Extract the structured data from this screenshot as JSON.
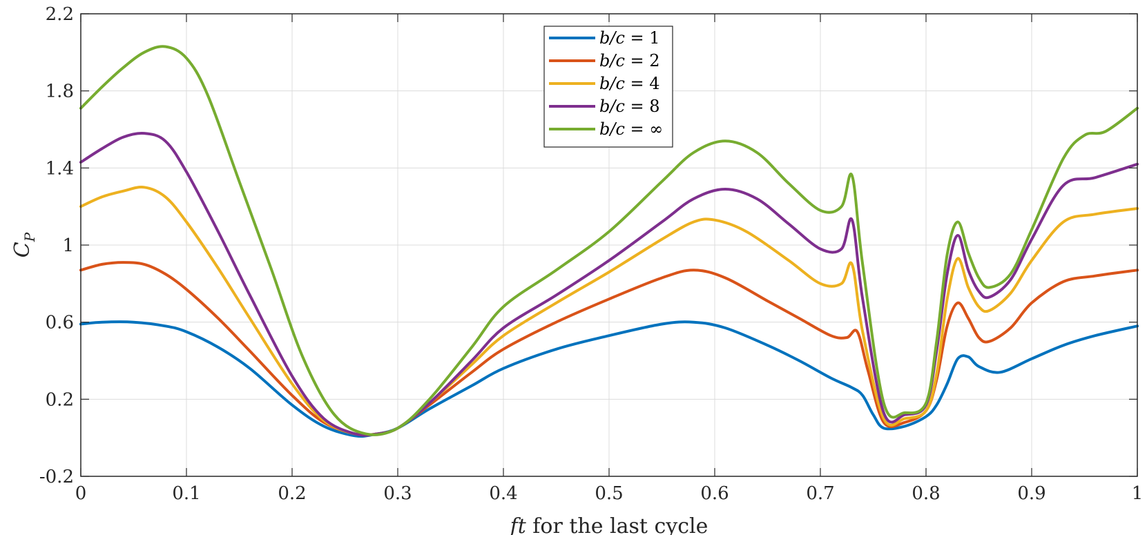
{
  "chart_data": {
    "type": "line",
    "title": "",
    "xlabel": "ft for the last cycle",
    "xlabel_math": "ft",
    "xlabel_text": " for the last cycle",
    "ylabel": "C_P",
    "ylabel_main": "C",
    "ylabel_sub": "P",
    "xlim": [
      0,
      1
    ],
    "ylim": [
      -0.2,
      2.2
    ],
    "xticks": [
      0,
      0.1,
      0.2,
      0.3,
      0.4,
      0.5,
      0.6,
      0.7,
      0.8,
      0.9,
      1
    ],
    "xtick_labels": [
      "0",
      "0.1",
      "0.2",
      "0.3",
      "0.4",
      "0.5",
      "0.6",
      "0.7",
      "0.8",
      "0.9",
      "1"
    ],
    "yticks": [
      -0.2,
      0.2,
      0.6,
      1,
      1.4,
      1.8,
      2.2
    ],
    "ytick_labels": [
      "-0.2",
      "0.2",
      "0.6",
      "1",
      "1.4",
      "1.8",
      "2.2"
    ],
    "grid": true,
    "legend_position": "top-center",
    "series": [
      {
        "name": "b/c = 1",
        "label_math": "b/c",
        "label_rhs": "1",
        "color": "#0072BD",
        "x": [
          0,
          0.02,
          0.05,
          0.08,
          0.1,
          0.13,
          0.16,
          0.2,
          0.23,
          0.26,
          0.28,
          0.3,
          0.33,
          0.37,
          0.4,
          0.45,
          0.5,
          0.55,
          0.58,
          0.61,
          0.65,
          0.68,
          0.71,
          0.73,
          0.74,
          0.75,
          0.76,
          0.78,
          0.8,
          0.81,
          0.82,
          0.83,
          0.84,
          0.85,
          0.87,
          0.9,
          0.93,
          0.96,
          1
        ],
        "y": [
          0.59,
          0.6,
          0.6,
          0.58,
          0.55,
          0.47,
          0.36,
          0.17,
          0.06,
          0.01,
          0.02,
          0.05,
          0.15,
          0.27,
          0.36,
          0.46,
          0.53,
          0.59,
          0.6,
          0.57,
          0.48,
          0.4,
          0.31,
          0.26,
          0.22,
          0.12,
          0.05,
          0.06,
          0.11,
          0.17,
          0.28,
          0.41,
          0.42,
          0.37,
          0.34,
          0.41,
          0.48,
          0.53,
          0.58
        ]
      },
      {
        "name": "b/c = 2",
        "label_math": "b/c",
        "label_rhs": "2",
        "color": "#D95319",
        "x": [
          0,
          0.02,
          0.04,
          0.06,
          0.08,
          0.1,
          0.13,
          0.16,
          0.2,
          0.23,
          0.26,
          0.28,
          0.3,
          0.33,
          0.37,
          0.4,
          0.45,
          0.5,
          0.55,
          0.58,
          0.61,
          0.65,
          0.68,
          0.71,
          0.725,
          0.735,
          0.745,
          0.76,
          0.78,
          0.8,
          0.81,
          0.82,
          0.83,
          0.84,
          0.85,
          0.86,
          0.88,
          0.9,
          0.93,
          0.96,
          1
        ],
        "y": [
          0.87,
          0.9,
          0.91,
          0.9,
          0.85,
          0.77,
          0.62,
          0.45,
          0.22,
          0.08,
          0.02,
          0.02,
          0.05,
          0.17,
          0.34,
          0.46,
          0.6,
          0.72,
          0.83,
          0.87,
          0.83,
          0.71,
          0.62,
          0.53,
          0.52,
          0.55,
          0.35,
          0.08,
          0.08,
          0.14,
          0.3,
          0.58,
          0.7,
          0.62,
          0.52,
          0.5,
          0.57,
          0.7,
          0.81,
          0.84,
          0.87
        ]
      },
      {
        "name": "b/c = 4",
        "label_math": "b/c",
        "label_rhs": "4",
        "color": "#EDB120",
        "x": [
          0,
          0.02,
          0.04,
          0.06,
          0.08,
          0.1,
          0.13,
          0.16,
          0.2,
          0.23,
          0.26,
          0.28,
          0.3,
          0.33,
          0.37,
          0.4,
          0.45,
          0.5,
          0.55,
          0.58,
          0.6,
          0.63,
          0.67,
          0.7,
          0.72,
          0.73,
          0.74,
          0.76,
          0.78,
          0.8,
          0.81,
          0.82,
          0.83,
          0.84,
          0.85,
          0.86,
          0.88,
          0.9,
          0.93,
          0.96,
          1
        ],
        "y": [
          1.2,
          1.25,
          1.28,
          1.3,
          1.25,
          1.12,
          0.88,
          0.62,
          0.28,
          0.09,
          0.02,
          0.02,
          0.05,
          0.18,
          0.38,
          0.53,
          0.7,
          0.86,
          1.03,
          1.12,
          1.13,
          1.07,
          0.92,
          0.8,
          0.8,
          0.9,
          0.55,
          0.1,
          0.1,
          0.14,
          0.33,
          0.72,
          0.93,
          0.78,
          0.68,
          0.66,
          0.75,
          0.92,
          1.12,
          1.16,
          1.19
        ]
      },
      {
        "name": "b/c = 8",
        "label_math": "b/c",
        "label_rhs": "8",
        "color": "#7E2F8E",
        "x": [
          0,
          0.02,
          0.04,
          0.06,
          0.08,
          0.1,
          0.13,
          0.16,
          0.2,
          0.23,
          0.26,
          0.28,
          0.3,
          0.33,
          0.37,
          0.4,
          0.45,
          0.5,
          0.55,
          0.58,
          0.61,
          0.64,
          0.67,
          0.7,
          0.72,
          0.73,
          0.74,
          0.76,
          0.78,
          0.8,
          0.81,
          0.82,
          0.83,
          0.84,
          0.85,
          0.86,
          0.88,
          0.9,
          0.93,
          0.96,
          1
        ],
        "y": [
          1.43,
          1.5,
          1.56,
          1.58,
          1.54,
          1.38,
          1.07,
          0.74,
          0.32,
          0.1,
          0.02,
          0.02,
          0.05,
          0.18,
          0.4,
          0.57,
          0.74,
          0.92,
          1.12,
          1.24,
          1.29,
          1.24,
          1.11,
          0.98,
          0.98,
          1.13,
          0.72,
          0.13,
          0.12,
          0.17,
          0.45,
          0.85,
          1.05,
          0.87,
          0.76,
          0.73,
          0.82,
          1.03,
          1.31,
          1.35,
          1.42
        ]
      },
      {
        "name": "b/c = ∞",
        "label_math": "b/c",
        "label_rhs": "∞",
        "color": "#77AC30",
        "x": [
          0,
          0.02,
          0.04,
          0.06,
          0.08,
          0.1,
          0.12,
          0.15,
          0.18,
          0.21,
          0.24,
          0.27,
          0.3,
          0.33,
          0.37,
          0.4,
          0.45,
          0.5,
          0.55,
          0.58,
          0.61,
          0.64,
          0.67,
          0.7,
          0.72,
          0.73,
          0.74,
          0.76,
          0.78,
          0.8,
          0.81,
          0.82,
          0.83,
          0.84,
          0.85,
          0.86,
          0.88,
          0.9,
          0.93,
          0.95,
          0.97,
          1
        ],
        "y": [
          1.71,
          1.82,
          1.92,
          2.0,
          2.03,
          1.97,
          1.78,
          1.33,
          0.88,
          0.42,
          0.12,
          0.02,
          0.05,
          0.2,
          0.47,
          0.68,
          0.87,
          1.07,
          1.33,
          1.48,
          1.54,
          1.48,
          1.32,
          1.18,
          1.2,
          1.36,
          0.9,
          0.18,
          0.13,
          0.18,
          0.5,
          0.95,
          1.12,
          0.96,
          0.83,
          0.78,
          0.85,
          1.08,
          1.45,
          1.57,
          1.59,
          1.71
        ]
      }
    ]
  }
}
